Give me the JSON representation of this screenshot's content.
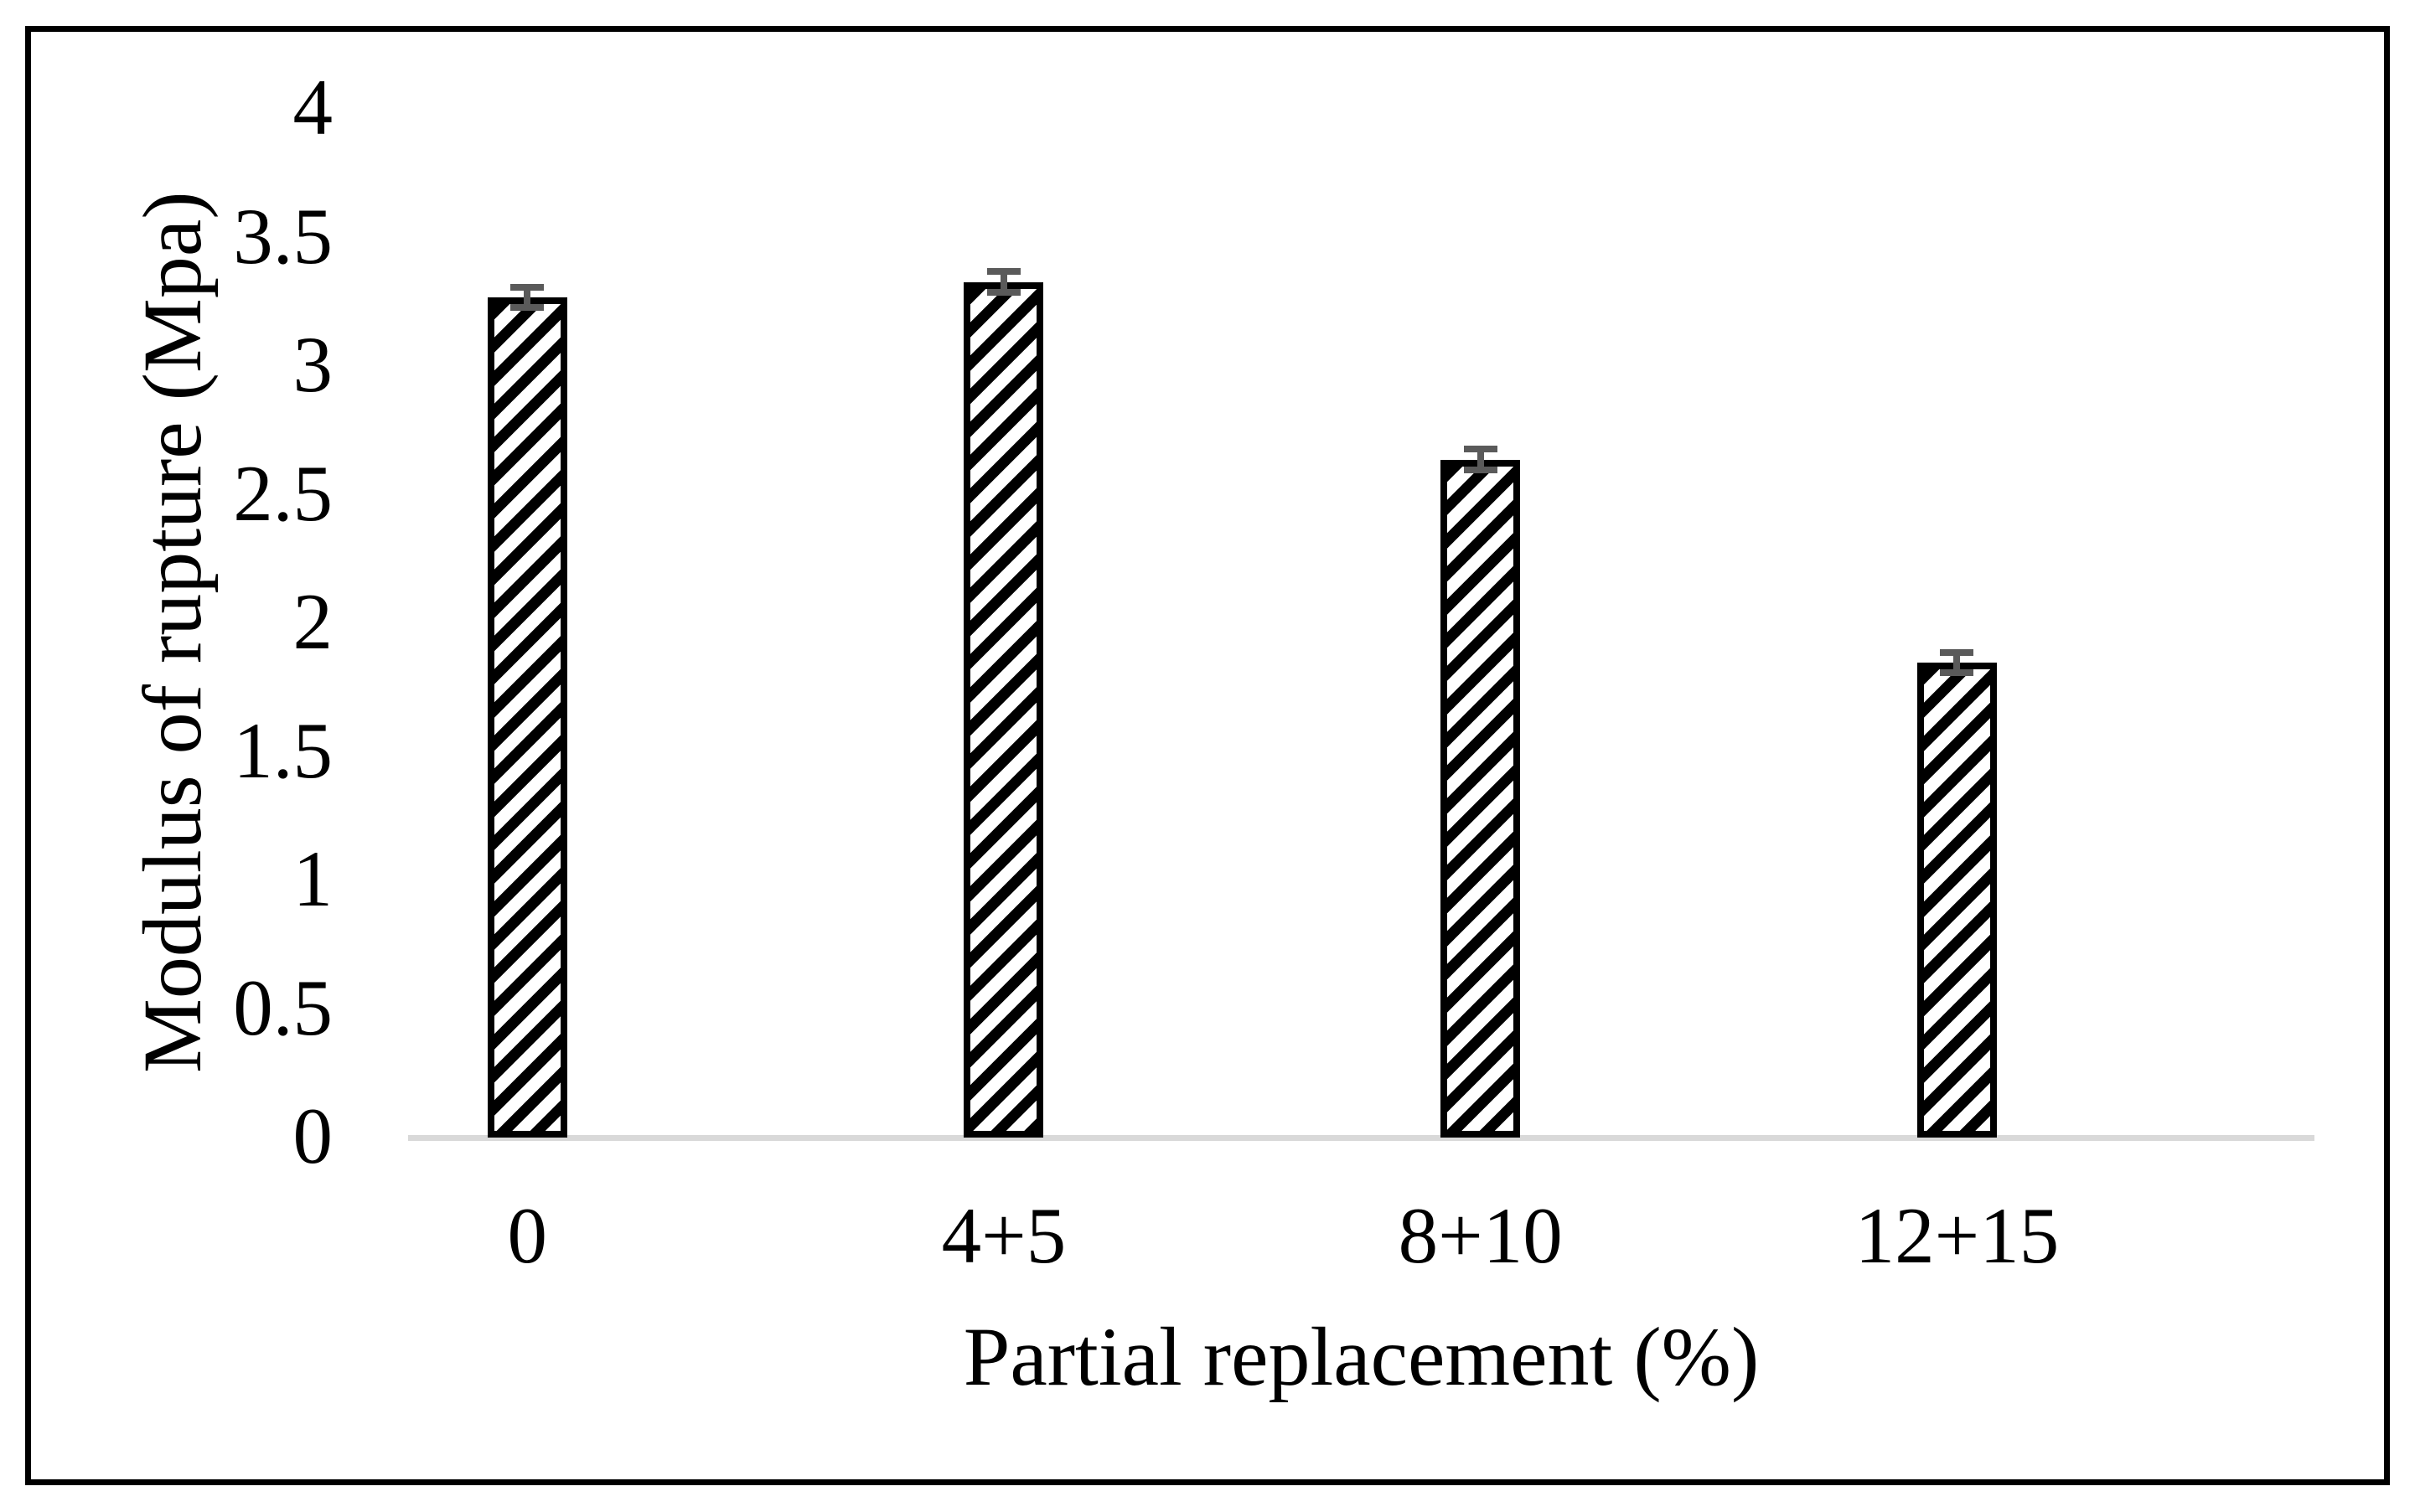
{
  "chart_data": {
    "type": "bar",
    "title": "",
    "categories": [
      "0",
      "4+5",
      "8+10",
      "12+15"
    ],
    "values": [
      3.26,
      3.32,
      2.63,
      1.84
    ],
    "error_bars": [
      0.04,
      0.04,
      0.04,
      0.04
    ],
    "xlabel": "Partial replacement (%)",
    "ylabel": "Modulus of rupture (Mpa)",
    "ylim": [
      0,
      4
    ],
    "ytick_step": 0.5,
    "yticks": [
      "0",
      "0.5",
      "1",
      "1.5",
      "2",
      "2.5",
      "3",
      "3.5",
      "4"
    ],
    "grid": "off",
    "legend": "none",
    "bar_fill": "diagonal-hatch",
    "colors": {
      "bar_stripe": "#000000",
      "bar_background": "#ffffff",
      "bar_outline": "#000000",
      "error_bar": "#5a5a5a",
      "baseline": "#d9d9d9",
      "frame_border": "#000000",
      "text": "#000000",
      "page_background": "#ffffff"
    }
  }
}
